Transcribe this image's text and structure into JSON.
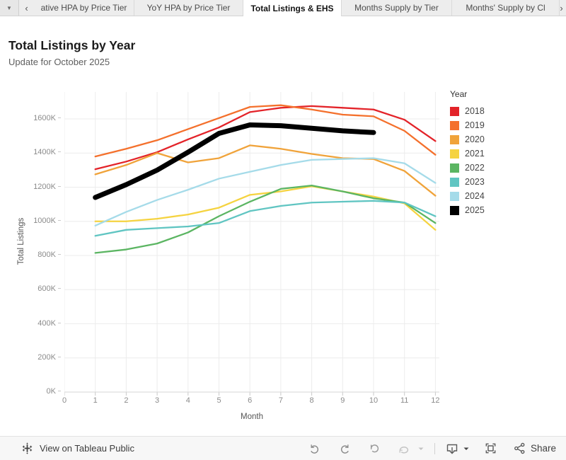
{
  "tab_bar": {
    "dropdown_caret": "▼",
    "left_chevron": "‹",
    "right_chevron": "›",
    "tabs": [
      {
        "label": "ative HPA by Price Tier",
        "active": false
      },
      {
        "label": "YoY HPA by Price Tier",
        "active": false
      },
      {
        "label": "Total Listings & EHS",
        "active": true
      },
      {
        "label": "Months Supply by Tier",
        "active": false
      },
      {
        "label": "Months' Supply by Cl",
        "active": false
      }
    ]
  },
  "chart_data": {
    "type": "line",
    "title": "Total Listings by Year",
    "subtitle": "Update for October 2025",
    "xlabel": "Month",
    "ylabel": "Total Listings",
    "legend_title": "Year",
    "legend_position": "right",
    "grid": true,
    "xlim": [
      0,
      12
    ],
    "ylim_k": [
      0,
      1760
    ],
    "x_ticks": [
      0,
      1,
      2,
      3,
      4,
      5,
      6,
      7,
      8,
      9,
      10,
      11,
      12
    ],
    "y_ticks": [
      {
        "v": 0,
        "label": "0K"
      },
      {
        "v": 200,
        "label": "200K"
      },
      {
        "v": 400,
        "label": "400K"
      },
      {
        "v": 600,
        "label": "600K"
      },
      {
        "v": 800,
        "label": "800K"
      },
      {
        "v": 1000,
        "label": "1000K"
      },
      {
        "v": 1200,
        "label": "1200K"
      },
      {
        "v": 1400,
        "label": "1400K"
      },
      {
        "v": 1600,
        "label": "1600K"
      }
    ],
    "x_months": [
      1,
      2,
      3,
      4,
      5,
      6,
      7,
      8,
      9,
      10,
      11,
      12
    ],
    "units": "thousands of listings",
    "series": [
      {
        "name": "2018",
        "color": "#e32329",
        "emphasis": false,
        "values_k": [
          1305,
          1350,
          1405,
          1480,
          1550,
          1640,
          1665,
          1675,
          1665,
          1655,
          1595,
          1470
        ]
      },
      {
        "name": "2019",
        "color": "#f4702c",
        "emphasis": false,
        "values_k": [
          1380,
          1425,
          1475,
          1540,
          1605,
          1670,
          1680,
          1655,
          1625,
          1615,
          1530,
          1390
        ]
      },
      {
        "name": "2020",
        "color": "#f0a33a",
        "emphasis": false,
        "values_k": [
          1275,
          1330,
          1400,
          1345,
          1370,
          1445,
          1425,
          1395,
          1370,
          1365,
          1295,
          1150
        ]
      },
      {
        "name": "2021",
        "color": "#f5d340",
        "emphasis": false,
        "values_k": [
          1000,
          1000,
          1015,
          1040,
          1080,
          1155,
          1175,
          1205,
          1175,
          1145,
          1105,
          950
        ]
      },
      {
        "name": "2022",
        "color": "#5bb562",
        "emphasis": false,
        "values_k": [
          815,
          835,
          870,
          935,
          1030,
          1115,
          1190,
          1210,
          1175,
          1135,
          1110,
          990
        ]
      },
      {
        "name": "2023",
        "color": "#60c5c2",
        "emphasis": false,
        "values_k": [
          915,
          950,
          960,
          970,
          990,
          1060,
          1090,
          1110,
          1115,
          1120,
          1110,
          1030
        ]
      },
      {
        "name": "2024",
        "color": "#a5dbe9",
        "emphasis": false,
        "values_k": [
          975,
          1055,
          1125,
          1185,
          1250,
          1290,
          1330,
          1360,
          1365,
          1370,
          1340,
          1225
        ]
      },
      {
        "name": "2025",
        "color": "#000000",
        "emphasis": true,
        "values_k": [
          1140,
          1215,
          1300,
          1405,
          1515,
          1565,
          1560,
          1545,
          1530,
          1520
        ]
      }
    ]
  },
  "footer": {
    "left_label": "View on Tableau Public",
    "share_label": "Share",
    "toolbar_icons": [
      "tableau-logo-icon",
      "undo-icon",
      "redo-icon",
      "reset-icon",
      "refresh-icon",
      "caret-down-icon",
      "download-icon",
      "download-caret-icon",
      "fullscreen-icon",
      "share-icon"
    ]
  }
}
